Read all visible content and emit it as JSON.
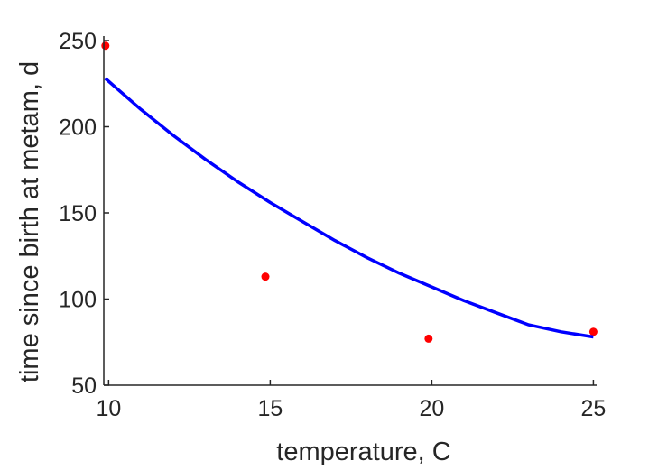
{
  "chart_data": {
    "type": "scatter",
    "title": "",
    "xlabel": "temperature, C",
    "ylabel": "time since birth at metam, d",
    "xlim": [
      9.85,
      25.1
    ],
    "ylim": [
      50,
      250
    ],
    "xticks": [
      "10",
      "15",
      "20",
      "25"
    ],
    "yticks": [
      "50",
      "100",
      "150",
      "200",
      "250"
    ],
    "grid": false,
    "legend": "none",
    "series": [
      {
        "kind": "scatter",
        "color": "#ff0000",
        "x": [
          9.9,
          14.85,
          19.9,
          25.0
        ],
        "y": [
          247,
          113,
          77,
          81
        ]
      },
      {
        "kind": "line",
        "color": "#0000ff",
        "x": [
          9.9,
          11,
          12,
          13,
          14,
          15,
          16,
          17,
          18,
          19,
          20,
          21,
          22,
          23,
          24,
          25
        ],
        "y": [
          228,
          210,
          195,
          181,
          168,
          156,
          145,
          134,
          124,
          115,
          107,
          99,
          92,
          85,
          81,
          78
        ]
      }
    ]
  }
}
